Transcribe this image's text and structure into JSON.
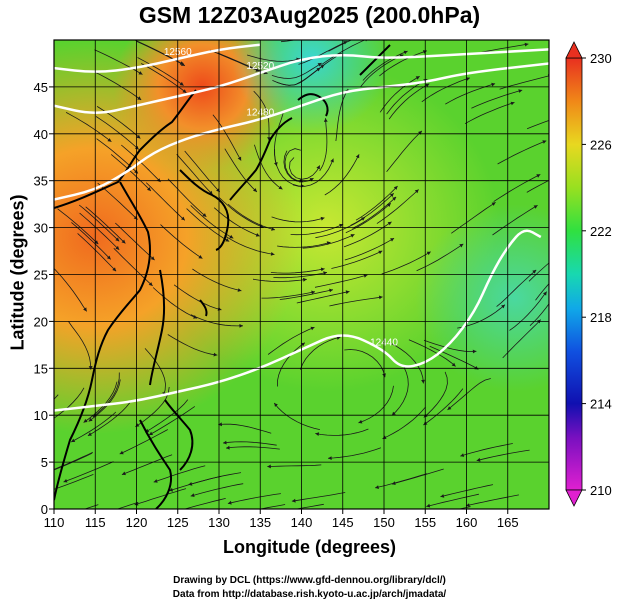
{
  "title": "GSM 12Z03Aug2025 (200.0hPa)",
  "x_axis": {
    "label": "Longitude (degrees)",
    "ticks": [
      "110",
      "115",
      "120",
      "125",
      "130",
      "135",
      "140",
      "145",
      "150",
      "155",
      "160",
      "165"
    ]
  },
  "y_axis": {
    "label": "Latitude  (degrees)",
    "ticks": [
      "0",
      "5",
      "10",
      "15",
      "20",
      "25",
      "30",
      "35",
      "40",
      "45"
    ]
  },
  "colorbar": {
    "ticks": [
      "210",
      "214",
      "218",
      "222",
      "226",
      "230"
    ]
  },
  "credits": {
    "line1": "Drawing by DCL (https://www.gfd-dennou.org/library/dcl/)",
    "line2": "Data from http://database.rish.kyoto-u.ac.jp/arch/jmadata/"
  },
  "chart_data": {
    "type": "heatmap",
    "title": "GSM 12Z03Aug2025 (200.0hPa)",
    "xlabel": "Longitude (degrees)",
    "ylabel": "Latitude  (degrees)",
    "xlim": [
      110,
      170
    ],
    "ylim": [
      0,
      50
    ],
    "colorbar_range": [
      210,
      230
    ],
    "grid": true,
    "contours": [
      {
        "label": "12440",
        "points": [
          [
            110,
            10.5
          ],
          [
            115,
            11
          ],
          [
            120,
            11.5
          ],
          [
            125,
            12.5
          ],
          [
            130,
            13.5
          ],
          [
            135,
            15
          ],
          [
            140,
            17
          ],
          [
            145,
            19
          ],
          [
            150,
            17
          ],
          [
            152,
            15
          ],
          [
            155,
            15.5
          ],
          [
            158,
            17.5
          ],
          [
            161,
            21
          ],
          [
            163,
            25
          ],
          [
            165,
            28
          ],
          [
            167,
            30
          ],
          [
            169,
            29
          ]
        ]
      },
      {
        "label": "12480",
        "points": [
          [
            110,
            33
          ],
          [
            115,
            34
          ],
          [
            119,
            36
          ],
          [
            122,
            38
          ],
          [
            126,
            39.5
          ],
          [
            130,
            40.5
          ],
          [
            135,
            41.5
          ],
          [
            140,
            43
          ],
          [
            145,
            44.5
          ],
          [
            150,
            45
          ],
          [
            155,
            45.5
          ],
          [
            160,
            46.5
          ],
          [
            170,
            47.5
          ]
        ]
      },
      {
        "label": "12520",
        "points": [
          [
            110,
            43
          ],
          [
            115,
            42
          ],
          [
            120,
            43
          ],
          [
            125,
            44
          ],
          [
            130,
            45
          ],
          [
            135,
            46.5
          ],
          [
            140,
            48
          ],
          [
            145,
            48.5
          ],
          [
            150,
            48
          ],
          [
            160,
            48.5
          ],
          [
            170,
            49
          ]
        ]
      },
      {
        "label": "12560",
        "points": [
          [
            110,
            47
          ],
          [
            115,
            46.5
          ],
          [
            120,
            47
          ],
          [
            125,
            48
          ],
          [
            130,
            49
          ],
          [
            135,
            49.5
          ]
        ]
      }
    ]
  }
}
